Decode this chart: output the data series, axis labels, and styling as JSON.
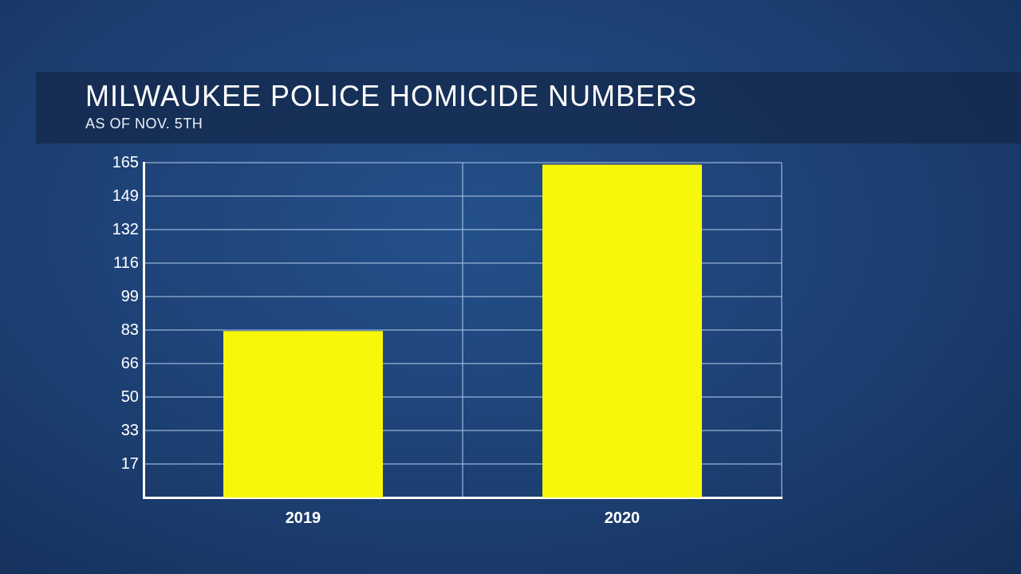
{
  "chart_data": {
    "type": "bar",
    "title": "MILWAUKEE POLICE HOMICIDE NUMBERS",
    "subtitle": "AS OF NOV. 5TH",
    "categories": [
      "2019",
      "2020"
    ],
    "values": [
      82,
      164
    ],
    "color": "#f7f70a",
    "ylim": [
      0,
      165
    ],
    "yticks": [
      {
        "value": 16.5,
        "label": "17"
      },
      33,
      {
        "value": 49.5,
        "label": "50"
      },
      66,
      {
        "value": 82.5,
        "label": "83"
      },
      99,
      {
        "value": 115.5,
        "label": "116"
      },
      132,
      {
        "value": 148.5,
        "label": "149"
      },
      165
    ],
    "grid": true
  }
}
